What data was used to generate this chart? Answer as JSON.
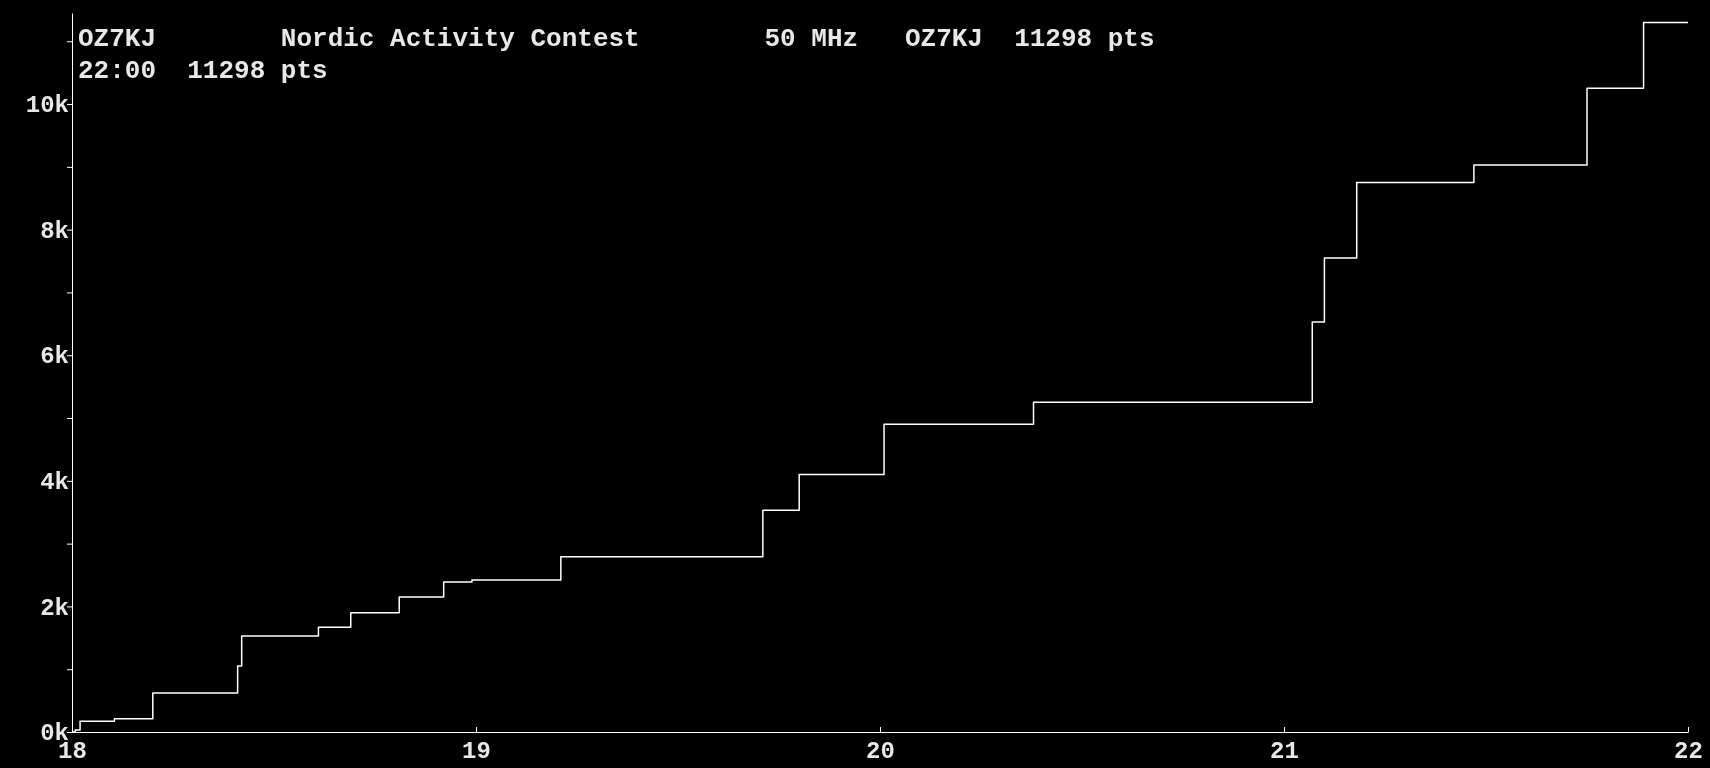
{
  "chart_data": {
    "type": "step",
    "title": "OZ7KJ        Nordic Activity Contest        50 MHz   OZ7KJ  11298 pts",
    "subtitle": "22:00  11298 pts",
    "x": [
      18,
      18.008,
      18.02,
      18.105,
      18.2,
      18.41,
      18.42,
      18.61,
      18.69,
      18.81,
      18.92,
      18.99,
      19.21,
      19.71,
      19.8,
      20.01,
      20.38,
      21.07,
      21.1,
      21.18,
      21.47,
      21.75,
      21.89,
      22
    ],
    "series": [
      {
        "color": "#ffffff",
        "values": [
          0,
          30,
          170,
          210,
          620,
          1050,
          1530,
          1670,
          1900,
          2150,
          2390,
          2420,
          2790,
          3530,
          4100,
          4900,
          5250,
          6530,
          7550,
          8750,
          9030,
          10250,
          11298,
          11298
        ]
      }
    ],
    "xlim": [
      18,
      22
    ],
    "xticks": [
      18,
      19,
      20,
      21,
      22
    ],
    "ylim": [
      0,
      11450
    ],
    "yticks": [
      {
        "value": 0,
        "label": "0k"
      },
      {
        "value": 1000,
        "label": null
      },
      {
        "value": 2000,
        "label": "2k"
      },
      {
        "value": 3000,
        "label": null
      },
      {
        "value": 4000,
        "label": "4k"
      },
      {
        "value": 5000,
        "label": null
      },
      {
        "value": 6000,
        "label": "6k"
      },
      {
        "value": 7000,
        "label": null
      },
      {
        "value": 8000,
        "label": "8k"
      },
      {
        "value": 9000,
        "label": null
      },
      {
        "value": 10000,
        "label": "10k"
      },
      {
        "value": 11000,
        "label": null
      }
    ]
  }
}
